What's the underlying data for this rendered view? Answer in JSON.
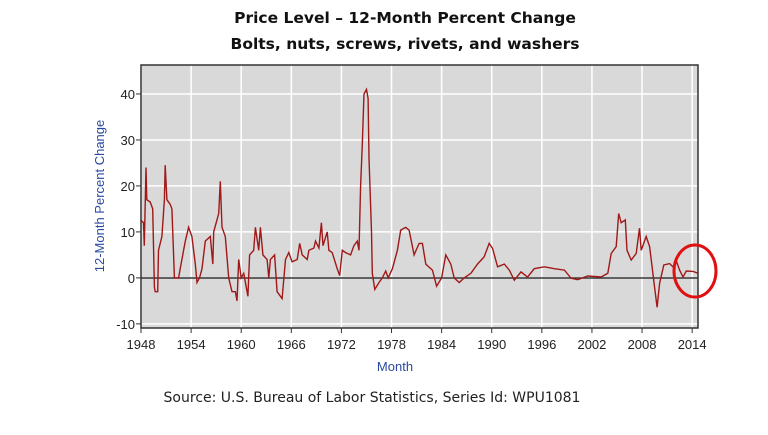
{
  "chart_data": {
    "type": "line",
    "title": "Price Level – 12-Month Percent Change",
    "subtitle": "Bolts, nuts, screws, rivets, and washers",
    "xlabel": "Month",
    "ylabel": "12-Month Percent Change",
    "source": "Source: U.S. Bureau of Labor Statistics, Series Id:  WPU1081",
    "xlim": [
      1948,
      2014.7
    ],
    "ylim": [
      -10.9,
      46.3
    ],
    "x_ticks": [
      "1948",
      "1954",
      "1960",
      "1966",
      "1972",
      "1978",
      "1984",
      "1990",
      "1996",
      "2002",
      "2008",
      "2014"
    ],
    "y_ticks": [
      "-10",
      "0",
      "10",
      "20",
      "30",
      "40"
    ],
    "grid": true,
    "plot_background": "#d9d9d9",
    "line_color": "#a01818",
    "annotation": {
      "type": "circle",
      "color": "#e01010",
      "around_x": 2014,
      "around_y": 1
    },
    "series": [
      {
        "points": [
          [
            1948.0,
            12.5
          ],
          [
            1948.3,
            12
          ],
          [
            1948.4,
            7
          ],
          [
            1948.6,
            24
          ],
          [
            1948.7,
            17
          ],
          [
            1949.1,
            16.5
          ],
          [
            1949.4,
            15
          ],
          [
            1949.6,
            -2
          ],
          [
            1949.7,
            -3
          ],
          [
            1950.0,
            -3
          ],
          [
            1950.1,
            6
          ],
          [
            1950.5,
            9
          ],
          [
            1950.8,
            17
          ],
          [
            1950.9,
            24.5
          ],
          [
            1951.1,
            17
          ],
          [
            1951.5,
            16
          ],
          [
            1951.7,
            15
          ],
          [
            1951.9,
            5
          ],
          [
            1952.0,
            0
          ],
          [
            1952.5,
            0
          ],
          [
            1952.7,
            2
          ],
          [
            1953.3,
            8
          ],
          [
            1953.7,
            11
          ],
          [
            1954.1,
            9
          ],
          [
            1954.5,
            3
          ],
          [
            1954.7,
            -1
          ],
          [
            1955.0,
            0
          ],
          [
            1955.3,
            2
          ],
          [
            1955.7,
            8
          ],
          [
            1956.3,
            9
          ],
          [
            1956.6,
            3
          ],
          [
            1956.7,
            10
          ],
          [
            1957.3,
            14
          ],
          [
            1957.5,
            21
          ],
          [
            1957.7,
            11
          ],
          [
            1958.1,
            9
          ],
          [
            1958.5,
            0
          ],
          [
            1958.9,
            -3
          ],
          [
            1959.3,
            -3
          ],
          [
            1959.5,
            -5
          ],
          [
            1959.7,
            4
          ],
          [
            1960.0,
            0
          ],
          [
            1960.3,
            1
          ],
          [
            1960.5,
            -1
          ],
          [
            1960.8,
            -4
          ],
          [
            1961.0,
            5
          ],
          [
            1961.5,
            6
          ],
          [
            1961.7,
            11
          ],
          [
            1962.1,
            6
          ],
          [
            1962.3,
            11
          ],
          [
            1962.6,
            5
          ],
          [
            1963.1,
            4
          ],
          [
            1963.3,
            0
          ],
          [
            1963.5,
            4
          ],
          [
            1964.0,
            5
          ],
          [
            1964.3,
            -3
          ],
          [
            1964.9,
            -4.5
          ],
          [
            1965.3,
            4
          ],
          [
            1965.7,
            5.5
          ],
          [
            1966.1,
            3.5
          ],
          [
            1966.7,
            4
          ],
          [
            1967.0,
            7.5
          ],
          [
            1967.3,
            5
          ],
          [
            1967.9,
            4
          ],
          [
            1968.1,
            6
          ],
          [
            1968.7,
            6.5
          ],
          [
            1968.9,
            8
          ],
          [
            1969.3,
            6.5
          ],
          [
            1969.6,
            12
          ],
          [
            1969.8,
            7
          ],
          [
            1970.3,
            10
          ],
          [
            1970.5,
            6
          ],
          [
            1970.9,
            5.5
          ],
          [
            1971.5,
            2
          ],
          [
            1971.8,
            0.5
          ],
          [
            1972.1,
            6
          ],
          [
            1972.5,
            5.5
          ],
          [
            1973.1,
            5
          ],
          [
            1973.5,
            7
          ],
          [
            1973.9,
            8
          ],
          [
            1974.1,
            6
          ],
          [
            1974.3,
            20
          ],
          [
            1974.5,
            29
          ],
          [
            1974.7,
            40
          ],
          [
            1975.0,
            41
          ],
          [
            1975.2,
            39
          ],
          [
            1975.3,
            26
          ],
          [
            1975.6,
            10
          ],
          [
            1975.7,
            1
          ],
          [
            1976.0,
            -2.5
          ],
          [
            1976.5,
            -1
          ],
          [
            1976.9,
            0
          ],
          [
            1977.3,
            1.5
          ],
          [
            1977.6,
            0
          ],
          [
            1978.1,
            2
          ],
          [
            1978.7,
            6
          ],
          [
            1979.1,
            10.4
          ],
          [
            1979.7,
            11
          ],
          [
            1980.1,
            10.4
          ],
          [
            1980.7,
            5
          ],
          [
            1981.3,
            7.5
          ],
          [
            1981.7,
            7.5
          ],
          [
            1982.1,
            3
          ],
          [
            1982.9,
            1.7
          ],
          [
            1983.4,
            -1.8
          ],
          [
            1984.0,
            0
          ],
          [
            1984.5,
            5
          ],
          [
            1985.1,
            3
          ],
          [
            1985.5,
            0
          ],
          [
            1986.1,
            -1
          ],
          [
            1986.7,
            0
          ],
          [
            1987.5,
            1
          ],
          [
            1988.3,
            3
          ],
          [
            1989.1,
            4.6
          ],
          [
            1989.7,
            7.5
          ],
          [
            1990.1,
            6.4
          ],
          [
            1990.7,
            2.4
          ],
          [
            1991.5,
            3
          ],
          [
            1992.1,
            1.7
          ],
          [
            1992.7,
            -0.5
          ],
          [
            1993.5,
            1.3
          ],
          [
            1994.3,
            0.2
          ],
          [
            1995.1,
            2
          ],
          [
            1996.3,
            2.4
          ],
          [
            1997.5,
            2
          ],
          [
            1998.7,
            1.7
          ],
          [
            1999.5,
            -0.1
          ],
          [
            2000.3,
            -0.4
          ],
          [
            2001.5,
            0.4
          ],
          [
            2003.1,
            0.2
          ],
          [
            2003.9,
            1
          ],
          [
            2004.3,
            5.3
          ],
          [
            2004.9,
            6.8
          ],
          [
            2005.2,
            14
          ],
          [
            2005.5,
            12
          ],
          [
            2006.0,
            12.6
          ],
          [
            2006.2,
            6
          ],
          [
            2006.7,
            3.9
          ],
          [
            2007.3,
            5.3
          ],
          [
            2007.7,
            10.8
          ],
          [
            2007.9,
            6
          ],
          [
            2008.5,
            9
          ],
          [
            2008.9,
            6.8
          ],
          [
            2009.2,
            2.4
          ],
          [
            2009.4,
            -0.5
          ],
          [
            2009.8,
            -6.4
          ],
          [
            2010.1,
            -1.2
          ],
          [
            2010.6,
            2.8
          ],
          [
            2011.3,
            3.1
          ],
          [
            2011.7,
            2.4
          ],
          [
            2012.1,
            3.7
          ],
          [
            2012.5,
            1.7
          ],
          [
            2012.9,
            0.2
          ],
          [
            2013.3,
            1.5
          ],
          [
            2014.1,
            1.4
          ],
          [
            2014.7,
            1
          ]
        ]
      }
    ]
  }
}
